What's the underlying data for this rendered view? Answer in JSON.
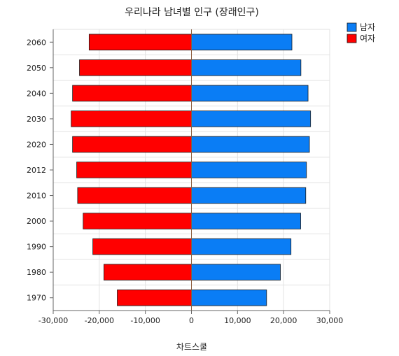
{
  "chart_data": {
    "type": "bar",
    "orientation": "horizontal",
    "title": "우리나라 남녀별 인구 (장래인구)",
    "xlabel": "차트스쿨",
    "ylabel": "",
    "categories": [
      "1970",
      "1980",
      "1990",
      "2000",
      "2010",
      "2012",
      "2020",
      "2030",
      "2040",
      "2050",
      "2060"
    ],
    "series": [
      {
        "name": "남자",
        "color": "#0A7DF5",
        "values": [
          16300,
          19300,
          21600,
          23700,
          24800,
          24950,
          25600,
          25850,
          25300,
          23750,
          21800
        ]
      },
      {
        "name": "여자",
        "color": "#FF0000",
        "values": [
          -16100,
          -19000,
          -21400,
          -23500,
          -24700,
          -24900,
          -25800,
          -26100,
          -25800,
          -24300,
          -22200
        ]
      }
    ],
    "xlim": [
      -30000,
      30000
    ],
    "xticks": [
      -30000,
      -20000,
      -10000,
      0,
      10000,
      20000,
      30000
    ],
    "xtick_labels": [
      "-30,000",
      "-20,000",
      "-10,000",
      "0",
      "10,000",
      "20,000",
      "30,000"
    ],
    "grid": true,
    "legend_position": "top-right"
  }
}
